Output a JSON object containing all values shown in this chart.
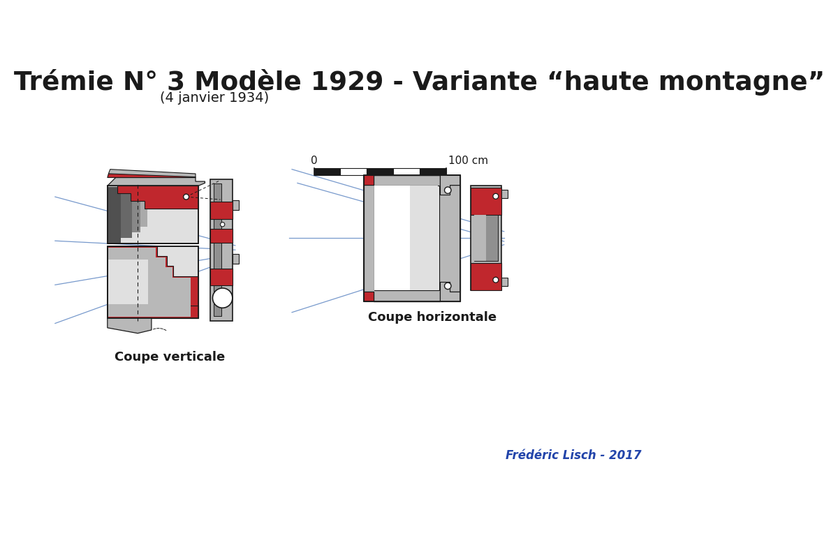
{
  "title_line1": "Trémie N° 3 Modèle 1929 - Variante “haute montagne”",
  "subtitle": "(4 janvier 1934)",
  "label_left": "Coupe verticale",
  "label_right": "Coupe horizontale",
  "author": "Frédéric Lisch - 2017",
  "bg_color": "#ffffff",
  "red": "#c0272d",
  "blue_line": "#7799cc",
  "dark_gray": "#404040",
  "mid_gray": "#909090",
  "light_gray": "#b8b8b8",
  "very_light_gray": "#e0e0e0",
  "black": "#1a1a1a"
}
